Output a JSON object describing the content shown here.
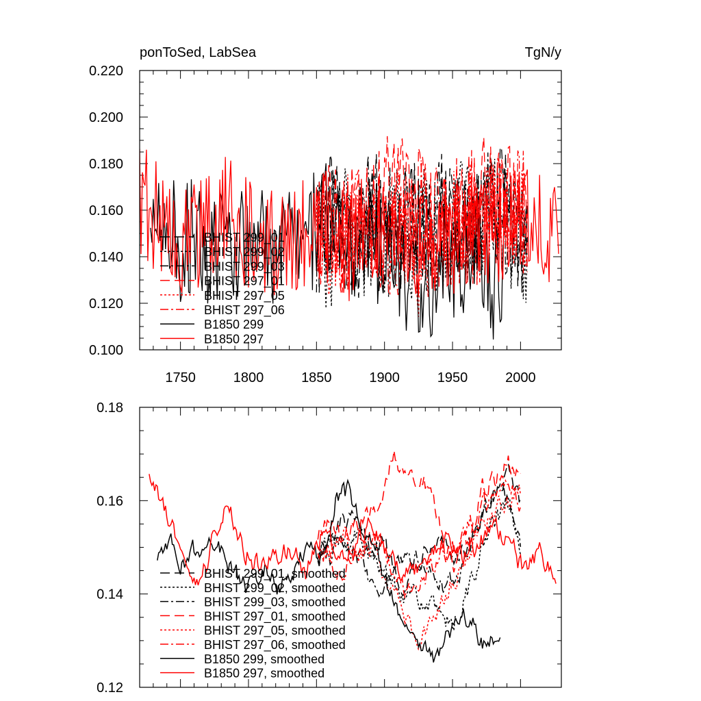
{
  "chart_data": [
    {
      "type": "line",
      "title": "ponToSed, LabSea",
      "units": "TgN/y",
      "xlim": [
        1720,
        2030
      ],
      "ylim": [
        0.1,
        0.22
      ],
      "xticks": [
        1750,
        1800,
        1850,
        1900,
        1950,
        2000
      ],
      "yticks": [
        0.1,
        0.12,
        0.14,
        0.16,
        0.18,
        0.2,
        0.22
      ],
      "ytick_labels": [
        "0.100",
        "0.120",
        "0.140",
        "0.160",
        "0.180",
        "0.200",
        "0.220"
      ],
      "legend_position": "lower-left",
      "series": [
        {
          "name": "BHIST 299_01",
          "color": "#000000",
          "dash": "long-dash",
          "x_start": 1850,
          "x_end": 2005,
          "values_anchors": [
            0.145,
            0.16,
            0.15,
            0.135,
            0.158,
            0.17,
            0.14,
            0.155,
            0.16,
            0.15,
            0.172,
            0.145,
            0.16,
            0.155,
            0.165,
            0.15,
            0.148
          ]
        },
        {
          "name": "BHIST 299_02",
          "color": "#000000",
          "dash": "dotted",
          "x_start": 1850,
          "x_end": 2005,
          "values_anchors": [
            0.15,
            0.14,
            0.16,
            0.13,
            0.15,
            0.145,
            0.16,
            0.135,
            0.155,
            0.15,
            0.145,
            0.16,
            0.15,
            0.165,
            0.155,
            0.15,
            0.14
          ]
        },
        {
          "name": "BHIST 299_03",
          "color": "#000000",
          "dash": "dash-dot",
          "x_start": 1850,
          "x_end": 2005,
          "values_anchors": [
            0.148,
            0.155,
            0.145,
            0.15,
            0.16,
            0.14,
            0.15,
            0.158,
            0.145,
            0.15,
            0.16,
            0.152,
            0.148,
            0.165,
            0.158,
            0.15,
            0.145
          ]
        },
        {
          "name": "BHIST 297_01",
          "color": "#ff0000",
          "dash": "long-dash",
          "x_start": 1850,
          "x_end": 2005,
          "values_anchors": [
            0.15,
            0.158,
            0.148,
            0.16,
            0.155,
            0.165,
            0.172,
            0.168,
            0.16,
            0.15,
            0.155,
            0.16,
            0.165,
            0.17,
            0.168,
            0.16,
            0.155
          ]
        },
        {
          "name": "BHIST 297_05",
          "color": "#ff0000",
          "dash": "dotted",
          "x_start": 1850,
          "x_end": 2005,
          "values_anchors": [
            0.15,
            0.145,
            0.155,
            0.15,
            0.16,
            0.15,
            0.158,
            0.14,
            0.135,
            0.145,
            0.15,
            0.155,
            0.16,
            0.158,
            0.165,
            0.16,
            0.158
          ]
        },
        {
          "name": "BHIST 297_06",
          "color": "#ff0000",
          "dash": "dash-dot",
          "x_start": 1850,
          "x_end": 2005,
          "values_anchors": [
            0.152,
            0.15,
            0.148,
            0.155,
            0.16,
            0.15,
            0.145,
            0.15,
            0.16,
            0.155,
            0.15,
            0.145,
            0.15,
            0.158,
            0.16,
            0.165,
            0.16
          ]
        },
        {
          "name": "B1850 299",
          "color": "#000000",
          "dash": "solid",
          "x_start": 1728,
          "x_end": 1987,
          "values_anchors": [
            0.15,
            0.152,
            0.145,
            0.15,
            0.14,
            0.152,
            0.145,
            0.15,
            0.14,
            0.148,
            0.145,
            0.15,
            0.16,
            0.15,
            0.14,
            0.145,
            0.14,
            0.135,
            0.13,
            0.125,
            0.135,
            0.13,
            0.14,
            0.13,
            0.128
          ]
        },
        {
          "name": "B1850 297",
          "color": "#ff0000",
          "dash": "solid",
          "x_start": 1720,
          "x_end": 2028,
          "values_anchors": [
            0.165,
            0.158,
            0.152,
            0.145,
            0.15,
            0.16,
            0.155,
            0.148,
            0.145,
            0.15,
            0.148,
            0.155,
            0.15,
            0.145,
            0.15,
            0.155,
            0.148,
            0.142,
            0.15,
            0.148,
            0.15,
            0.155,
            0.152,
            0.15,
            0.155,
            0.15,
            0.145
          ]
        }
      ]
    },
    {
      "type": "line",
      "xlim": [
        1720,
        2030
      ],
      "ylim": [
        0.12,
        0.18
      ],
      "xticks": [
        1750,
        1800,
        1850,
        1900,
        1950,
        2000
      ],
      "yticks": [
        0.12,
        0.14,
        0.16,
        0.18
      ],
      "ytick_labels": [
        "0.12",
        "0.14",
        "0.16",
        "0.18"
      ],
      "legend_position": "lower-left",
      "series": [
        {
          "name": "BHIST 299_01, smoothed",
          "color": "#000000",
          "dash": "long-dash",
          "x_start": 1851,
          "x_end": 2000,
          "values_anchors": [
            0.148,
            0.15,
            0.156,
            0.154,
            0.15,
            0.152,
            0.146,
            0.142,
            0.148,
            0.153,
            0.152,
            0.147,
            0.15,
            0.155,
            0.16,
            0.166,
            0.158
          ]
        },
        {
          "name": "BHIST 299_02, smoothed",
          "color": "#000000",
          "dash": "dotted",
          "x_start": 1851,
          "x_end": 2000,
          "values_anchors": [
            0.147,
            0.152,
            0.15,
            0.153,
            0.148,
            0.145,
            0.143,
            0.14,
            0.139,
            0.137,
            0.133,
            0.135,
            0.142,
            0.15,
            0.155,
            0.16,
            0.148
          ]
        },
        {
          "name": "BHIST 299_03, smoothed",
          "color": "#000000",
          "dash": "dash-dot",
          "x_start": 1851,
          "x_end": 2000,
          "values_anchors": [
            0.15,
            0.148,
            0.152,
            0.15,
            0.143,
            0.14,
            0.145,
            0.147,
            0.148,
            0.145,
            0.14,
            0.145,
            0.15,
            0.158,
            0.162,
            0.16,
            0.152
          ]
        },
        {
          "name": "BHIST 297_01, smoothed",
          "color": "#ff0000",
          "dash": "long-dash",
          "x_start": 1851,
          "x_end": 2000,
          "values_anchors": [
            0.152,
            0.155,
            0.15,
            0.155,
            0.157,
            0.16,
            0.172,
            0.163,
            0.166,
            0.16,
            0.15,
            0.146,
            0.152,
            0.163,
            0.165,
            0.169,
            0.165
          ]
        },
        {
          "name": "BHIST 297_05, smoothed",
          "color": "#ff0000",
          "dash": "dotted",
          "x_start": 1851,
          "x_end": 2000,
          "values_anchors": [
            0.149,
            0.147,
            0.152,
            0.148,
            0.15,
            0.145,
            0.14,
            0.135,
            0.13,
            0.135,
            0.14,
            0.145,
            0.15,
            0.155,
            0.158,
            0.16,
            0.162
          ]
        },
        {
          "name": "BHIST 297_06, smoothed",
          "color": "#ff0000",
          "dash": "dash-dot",
          "x_start": 1851,
          "x_end": 2000,
          "values_anchors": [
            0.15,
            0.148,
            0.145,
            0.15,
            0.152,
            0.15,
            0.145,
            0.14,
            0.142,
            0.146,
            0.148,
            0.15,
            0.155,
            0.158,
            0.16,
            0.163,
            0.16
          ]
        },
        {
          "name": "B1850 299, smoothed",
          "color": "#000000",
          "dash": "solid",
          "x_start": 1733,
          "x_end": 1985,
          "values_anchors": [
            0.147,
            0.153,
            0.146,
            0.15,
            0.152,
            0.148,
            0.143,
            0.141,
            0.145,
            0.14,
            0.146,
            0.15,
            0.148,
            0.16,
            0.162,
            0.155,
            0.148,
            0.14,
            0.135,
            0.13,
            0.125,
            0.13,
            0.137,
            0.133,
            0.128,
            0.131
          ]
        },
        {
          "name": "B1850 297, smoothed",
          "color": "#ff0000",
          "dash": "solid",
          "x_start": 1727,
          "x_end": 2026,
          "values_anchors": [
            0.164,
            0.158,
            0.15,
            0.14,
            0.15,
            0.16,
            0.15,
            0.146,
            0.148,
            0.15,
            0.145,
            0.153,
            0.15,
            0.148,
            0.155,
            0.15,
            0.146,
            0.145,
            0.15,
            0.152,
            0.148,
            0.15,
            0.156,
            0.15,
            0.145,
            0.15,
            0.143
          ]
        }
      ]
    }
  ]
}
